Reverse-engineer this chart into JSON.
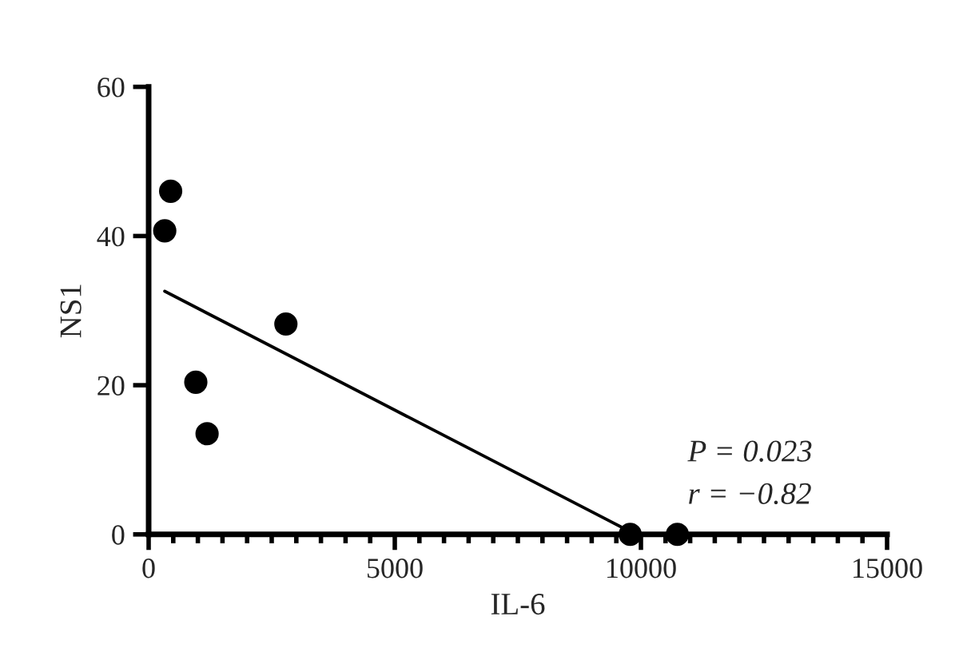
{
  "chart_data": {
    "type": "scatter",
    "xlabel": "IL-6",
    "ylabel": "NS1",
    "series": [
      {
        "color": "#000000",
        "marker": "circle",
        "x": [
          327,
          447,
          958,
          1187,
          2788,
          9782,
          10740
        ],
        "values": [
          40.7,
          46,
          20.4,
          13.5,
          28.2,
          0,
          0
        ]
      },
      {
        "type": "line",
        "color": "#000000",
        "marker": "none",
        "line_style": "solid",
        "x": [
          327,
          9890
        ],
        "values": [
          32.6,
          0
        ]
      }
    ],
    "xlim": [
      0,
      15000
    ],
    "ylim": [
      0,
      60
    ],
    "xticks": [
      0,
      {
        "value": 500,
        "label": null
      },
      {
        "value": 1000,
        "label": null
      },
      {
        "value": 1500,
        "label": null
      },
      {
        "value": 2000,
        "label": null
      },
      {
        "value": 2500,
        "label": null
      },
      {
        "value": 3000,
        "label": null
      },
      {
        "value": 3500,
        "label": null
      },
      {
        "value": 4000,
        "label": null
      },
      {
        "value": 4500,
        "label": null
      },
      5000,
      {
        "value": 5500,
        "label": null
      },
      {
        "value": 6000,
        "label": null
      },
      {
        "value": 6500,
        "label": null
      },
      {
        "value": 7000,
        "label": null
      },
      {
        "value": 7500,
        "label": null
      },
      {
        "value": 8000,
        "label": null
      },
      {
        "value": 8500,
        "label": null
      },
      {
        "value": 9000,
        "label": null
      },
      {
        "value": 9500,
        "label": null
      },
      10000,
      {
        "value": 10500,
        "label": null
      },
      {
        "value": 11000,
        "label": null
      },
      {
        "value": 11500,
        "label": null
      },
      {
        "value": 12000,
        "label": null
      },
      {
        "value": 12500,
        "label": null
      },
      {
        "value": 13000,
        "label": null
      },
      {
        "value": 13500,
        "label": null
      },
      {
        "value": 14000,
        "label": null
      },
      {
        "value": 14500,
        "label": null
      },
      15000
    ],
    "yticks": [
      0,
      20,
      40,
      60
    ],
    "annotations": [
      "P = 0.023",
      "r = −0.82"
    ],
    "grid": false,
    "legend": false
  }
}
